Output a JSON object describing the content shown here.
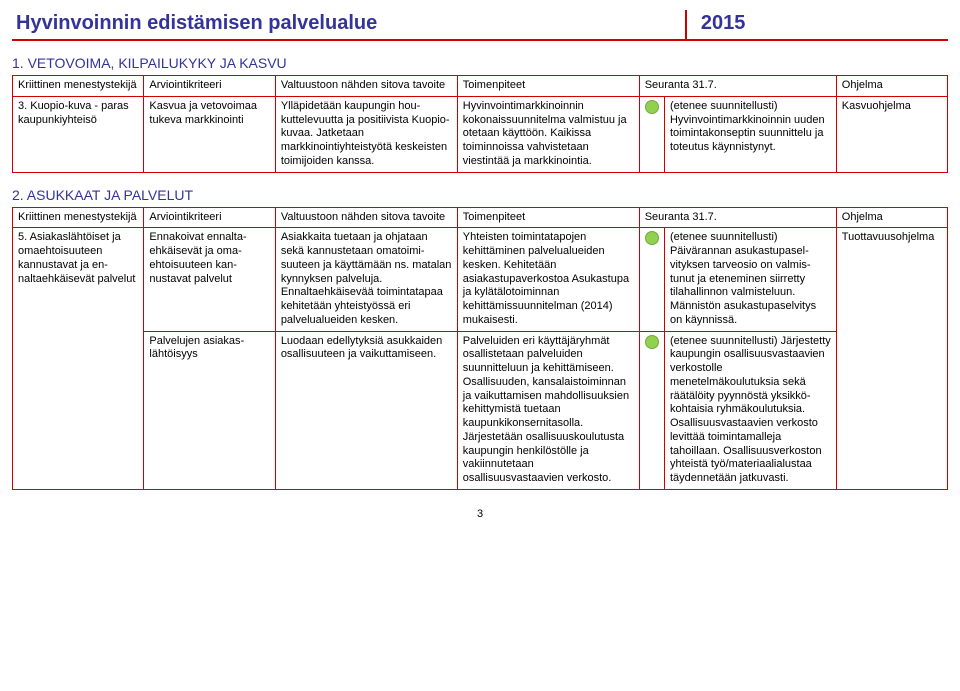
{
  "title": "Hyvinvoinnin edistämisen palvelualue",
  "year": "2015",
  "headers": {
    "c1": "Kriittinen menes­tystekijä",
    "c2": "Arviointikriteeri",
    "c3": "Valtuustoon nähden sitova tavoite",
    "c4": "Toimenpiteet",
    "c5": "",
    "c6": "Seuranta 31.7.",
    "c7": "Ohjelma"
  },
  "section1": {
    "heading": "1. VETOVOIMA, KILPAILUKYKY JA KASVU",
    "row": {
      "c1": "3. Kuopio-kuva - paras kaupunkiyh­teisö",
      "c2": "Kasvua ja vetovoi­maa tukeva markki­nointi",
      "c3": "Ylläpidetään kaupungin hou­kuttelevuutta ja positiivista Kuopio-kuvaa.\nJatketaan markkinointiyhteis­työtä keskeisten toimijoiden kanssa.",
      "c4": "Hyvinvointimarkkinoinnin kokonaissuunnitelma valmis­tuu ja otetaan käyttöön. Kai­kissa toiminnoissa vahviste­taan viestintää ja markkinoin­tia.",
      "c6": "(etenee suunnitellusti) Hyvinvointimarkkinoinnin uuden toimintakonseptin suunnittelu ja toteutus käyn­nistynyt.",
      "c7": "Kasvuohjelma"
    }
  },
  "section2": {
    "heading": "2. ASUKKAAT JA PALVELUT",
    "rowA": {
      "c1": "5. Asiakaslähtöiset ja omaehtoisuuteen kannustavat ja en­naltaehkäisevät palvelut",
      "c2": "Ennakoivat ennalta­ehkäisevät ja oma­ehtoisuuteen kan­nustavat palvelut",
      "c3": "Asiakkaita tuetaan ja ohjataan sekä kannustetaan omatoimi­suuteen ja käyttämään ns. matalan kynnyksen palveluja. Ennaltaehkäisevää toiminta­tapaa kehitetään yhteistyössä eri palvelualueiden kesken.",
      "c4": "Yhteisten toimintatapojen kehittäminen palvelualueiden kesken.\nKehitetään asiakastupaver­kostoa Asukastupa ja kylätä­lotoiminnan kehittämissuun­nitelman (2014) mukaisesti.",
      "c6": "(etenee suunnitellusti) Päivärannan asukastupasel­vityksen tarveosio on valmis­tunut ja eteneminen siirretty tilahallinnon valmisteluun. Männistön asukastupaselvitys on käynnissä.",
      "c7": "Tuottavuusohjelma"
    },
    "rowB": {
      "c2": "Palvelujen asiakas­lähtöisyys",
      "c3": "Luodaan edellytyksiä asuk­kaiden osallisuuteen ja vaikut­tamiseen.",
      "c4": "Palveluiden eri käyttäjäryh­mät osallistetaan palveluiden suunnitteluun ja kehittämi­seen.\nOsallisuuden, kansalaistoi­minnan ja vaikuttamisen mahdollisuuksien kehittymis­tä tuetaan kaupunkikonserni­tasolla. Järjestetään osalli­suuskoulutusta kaupungin henkilöstölle ja vakiinnute­taan osallisuusvastaavien verkosto.",
      "c6": "(etenee suunnitellusti) Järjestetty kaupungin osalli­suusvastaavien verkostolle menetelmäkoulutuksia sekä räätälöity pyynnöstä yksikkö­kohtaisia ryhmäkoulutuksia. Osallisuusvastaavien verkos­to levittää toimintamalleja tahoillaan.\nOsallisuusverkoston yhteistä työ/materiaalialustaa täyden­netään jatkuvasti."
    }
  },
  "pagenum": "3",
  "colors": {
    "dot": "#92d050"
  }
}
